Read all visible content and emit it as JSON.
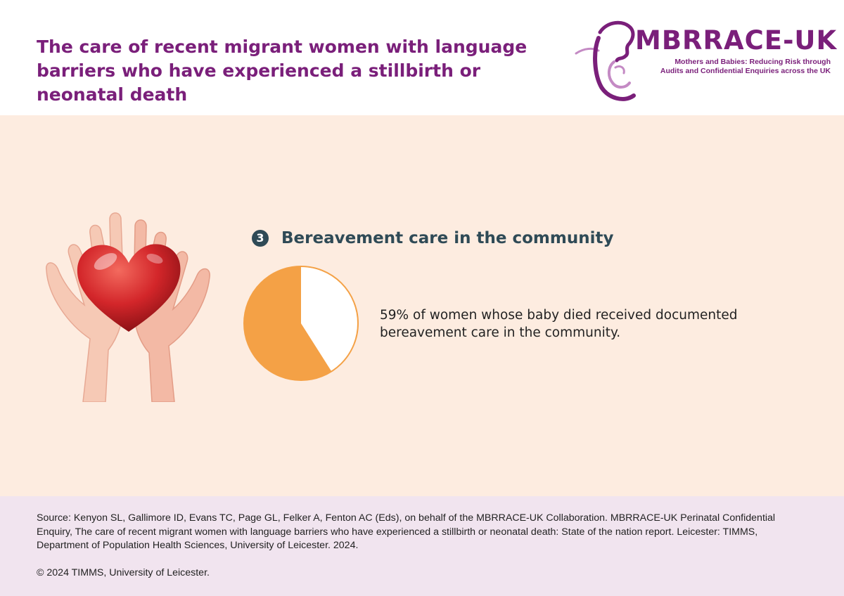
{
  "header": {
    "title": "The care of recent migrant women with language barriers who have experienced a stillbirth or neonatal death",
    "logo": {
      "wordmark": "MBRRACE-UK",
      "tagline": "Mothers and Babies: Reducing Risk through Audits and Confidential Enquiries across the UK",
      "color": "#7a1f7a",
      "icon": "mother-baby-profile-icon"
    }
  },
  "section": {
    "number": "3",
    "title": "Bereavement care in the community",
    "illustration": "hands-holding-heart-icon",
    "text": "59% of women whose baby died received documented bereavement care in the community."
  },
  "chart_data": {
    "type": "pie",
    "slices": [
      {
        "label": "",
        "value": 59,
        "color": "#f4a146"
      },
      {
        "label": "",
        "value": 41,
        "color": "#ffffff"
      }
    ],
    "outline_color": "#f4a146"
  },
  "footer": {
    "source": "Source: Kenyon SL, Gallimore ID, Evans TC, Page GL, Felker A, Fenton AC (Eds), on behalf of the MBRRACE-UK Collaboration. MBRRACE-UK Perinatal Confidential Enquiry, The care of recent migrant women with language barriers who have experienced a stillbirth or neonatal death: State of the nation report. Leicester: TIMMS, Department of Population Health Sciences, University of Leicester. 2024.",
    "copyright": "© 2024 TIMMS, University of Leicester."
  },
  "colors": {
    "main_background": "#fdece0",
    "footer_background": "#f1e4ef",
    "heading": "#2f4a56",
    "title": "#7a1f7a"
  }
}
